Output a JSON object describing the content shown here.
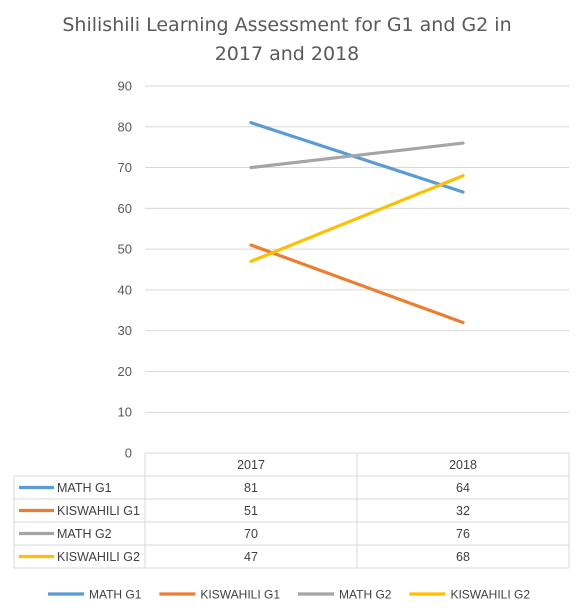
{
  "chart_data": {
    "type": "line",
    "title_lines": [
      "Shilishili Learning Assessment for G1 and G2 in",
      "2017 and 2018"
    ],
    "categories": [
      "2017",
      "2018"
    ],
    "ylim": [
      0,
      90
    ],
    "yticks": [
      "0",
      "10",
      "20",
      "30",
      "40",
      "50",
      "60",
      "70",
      "80",
      "90"
    ],
    "grid": true,
    "data_table": true,
    "legend_position": "bottom",
    "series": [
      {
        "name": "MATH G1",
        "values": [
          81,
          64
        ],
        "color": "#5b9bd5"
      },
      {
        "name": "KISWAHILI G1",
        "values": [
          51,
          32
        ],
        "color": "#ed7d31"
      },
      {
        "name": "MATH G2",
        "values": [
          70,
          76
        ],
        "color": "#a5a5a5"
      },
      {
        "name": "KISWAHILI G2",
        "values": [
          47,
          68
        ],
        "color": "#ffc000"
      }
    ]
  }
}
